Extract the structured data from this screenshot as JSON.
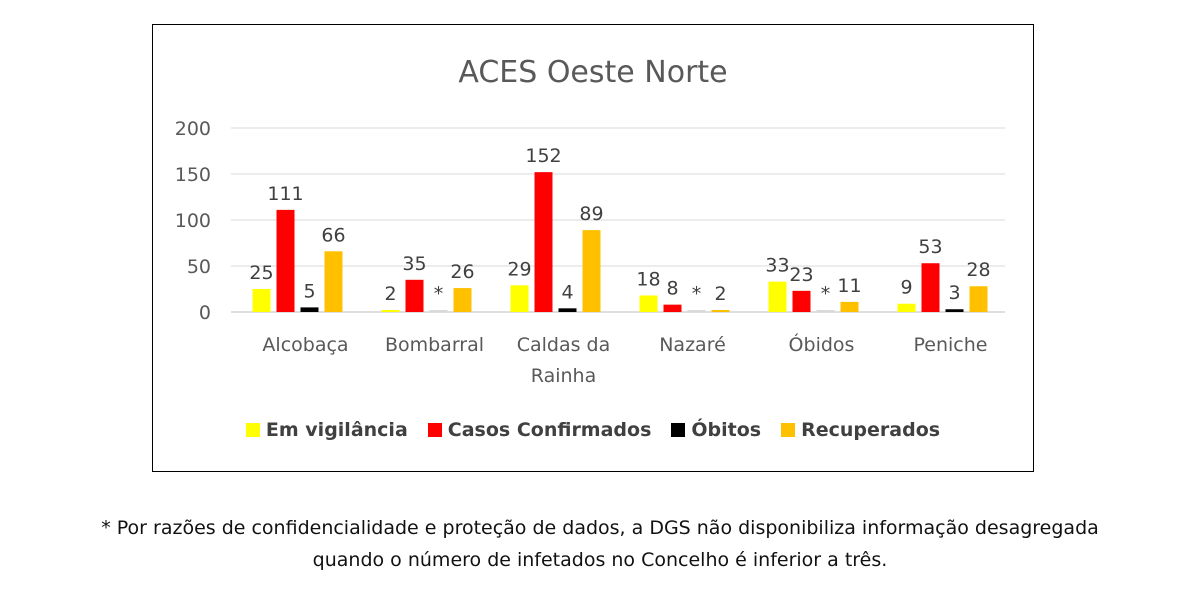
{
  "chart_data": {
    "type": "bar",
    "title": "ACES Oeste Norte",
    "xlabel": "",
    "ylabel": "",
    "ylim": [
      0,
      200
    ],
    "yticks": [
      0,
      50,
      100,
      150,
      200
    ],
    "grid": true,
    "legend_position": "bottom",
    "categories": [
      [
        "Alcobaça"
      ],
      [
        "Bombarral"
      ],
      [
        "Caldas da",
        "Rainha"
      ],
      [
        "Nazaré"
      ],
      [
        "Óbidos"
      ],
      [
        "Peniche"
      ]
    ],
    "series": [
      {
        "name": "Em vigilância",
        "color": "#FFFF00",
        "values": [
          25,
          2,
          29,
          18,
          33,
          9
        ],
        "labels": [
          "25",
          "2",
          "29",
          "18",
          "33",
          "9"
        ]
      },
      {
        "name": "Casos Confirmados",
        "color": "#FF0000",
        "values": [
          111,
          35,
          152,
          8,
          23,
          53
        ],
        "labels": [
          "111",
          "35",
          "152",
          "8",
          "23",
          "53"
        ]
      },
      {
        "name": "Óbitos",
        "color": "#000000",
        "values": [
          5,
          0,
          4,
          0,
          0,
          3
        ],
        "labels": [
          "5",
          "*",
          "4",
          "*",
          "*",
          "3"
        ]
      },
      {
        "name": "Recuperados",
        "color": "#FFC000",
        "values": [
          66,
          26,
          89,
          2,
          11,
          28
        ],
        "labels": [
          "66",
          "26",
          "89",
          "2",
          "11",
          "28"
        ]
      }
    ]
  },
  "footnote": {
    "line1": "* Por razões de confidencialidade e proteção de dados, a DGS não disponibiliza informação desagregada",
    "line2": "quando o número de infetados no Concelho é inferior a três."
  }
}
